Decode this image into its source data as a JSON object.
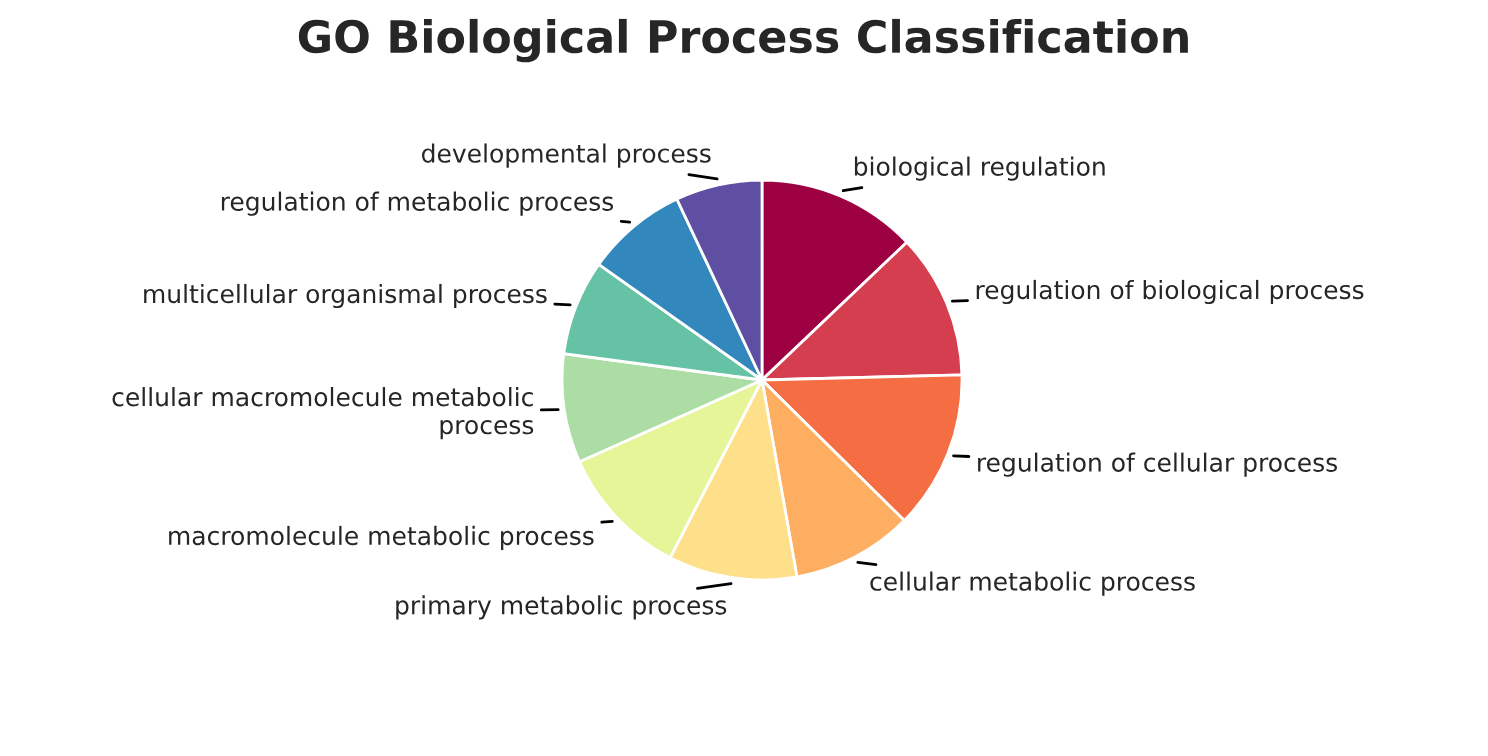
{
  "chart_data": {
    "type": "pie",
    "title": "GO Biological Process Classification",
    "categories": [
      "biological regulation",
      "regulation of biological process",
      "regulation of cellular process",
      "cellular metabolic process",
      "primary metabolic process",
      "macromolecule metabolic process",
      "cellular macromolecule metabolic\nprocess",
      "multicellular organismal process",
      "regulation of metabolic process",
      "developmental process"
    ],
    "values": [
      12.9,
      11.7,
      12.8,
      9.8,
      10.4,
      10.7,
      8.8,
      7.7,
      8.2,
      7.0
    ],
    "colors": [
      "#9e0142",
      "#d53e4f",
      "#f46d43",
      "#fdae61",
      "#fee08b",
      "#e6f598",
      "#abdda4",
      "#66c2a5",
      "#3288bd",
      "#5e4fa2"
    ]
  }
}
